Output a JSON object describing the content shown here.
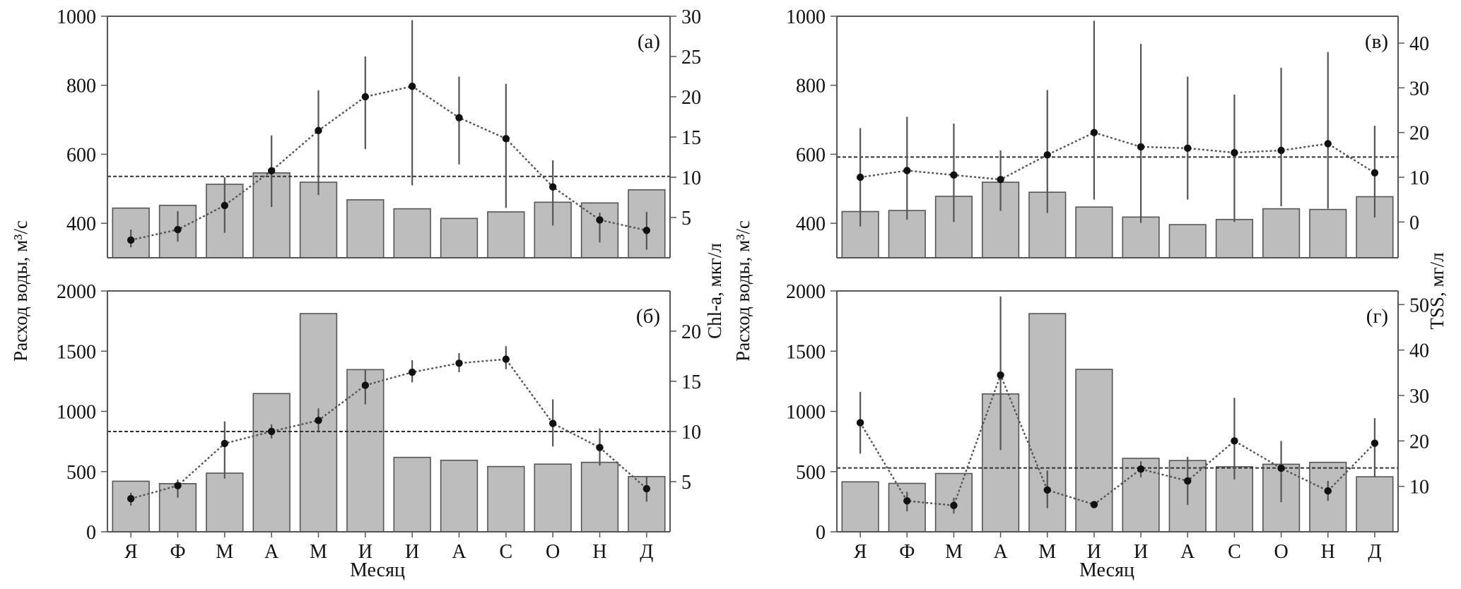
{
  "months": [
    "Я",
    "Ф",
    "М",
    "А",
    "М",
    "И",
    "И",
    "А",
    "С",
    "О",
    "Н",
    "Д"
  ],
  "xlabel": "Месяц",
  "ylabel_left": "Расход воды, м³/с",
  "ylabel_chl": "Chl-a, мкг/л",
  "ylabel_tss": "TSS, мг/л",
  "colors": {
    "bar": "#bdbdbd",
    "bar_stroke": "#555555",
    "line": "#555555",
    "point": "#111111"
  },
  "chart_data": [
    {
      "type": "bar",
      "panel_label": "(а)",
      "categories": [
        "Я",
        "Ф",
        "М",
        "А",
        "М",
        "И",
        "И",
        "А",
        "С",
        "О",
        "Н",
        "Д"
      ],
      "discharge": {
        "values": [
          444,
          452,
          513,
          546,
          519,
          468,
          442,
          414,
          433,
          461,
          459,
          497
        ],
        "ylim": [
          300,
          1000
        ],
        "yticks": [
          400,
          600,
          800,
          1000
        ]
      },
      "concentration": {
        "values": [
          2.2,
          3.5,
          6.5,
          10.8,
          15.8,
          20.0,
          21.3,
          17.4,
          14.8,
          8.8,
          4.7,
          3.4
        ],
        "err_low": [
          0.9,
          1.5,
          3.4,
          4.5,
          8.0,
          6.5,
          12.3,
          5.8,
          8.6,
          4.8,
          2.8,
          2.4
        ],
        "err_high": [
          1.3,
          2.3,
          3.5,
          4.4,
          5.0,
          5.0,
          8.2,
          5.1,
          6.8,
          3.3,
          0.9,
          2.3
        ],
        "ylim": [
          0,
          30
        ],
        "yticks": [
          5,
          10,
          15,
          20,
          25,
          30
        ]
      },
      "reference_line": 536
    },
    {
      "type": "bar",
      "panel_label": "(б)",
      "categories": [
        "Я",
        "Ф",
        "М",
        "А",
        "М",
        "И",
        "И",
        "А",
        "С",
        "О",
        "Н",
        "Д"
      ],
      "discharge": {
        "values": [
          420,
          400,
          487,
          1148,
          1812,
          1347,
          618,
          594,
          542,
          562,
          577,
          459
        ],
        "ylim": [
          0,
          2000
        ],
        "yticks": [
          0,
          500,
          1000,
          1500,
          2000
        ]
      },
      "concentration": {
        "values": [
          3.3,
          4.6,
          8.8,
          10.0,
          11.1,
          14.6,
          15.9,
          16.8,
          17.2,
          10.8,
          8.4,
          4.3
        ],
        "err_low": [
          0.7,
          1.2,
          3.5,
          0.7,
          1.1,
          1.9,
          1.0,
          0.9,
          1.0,
          2.3,
          1.8,
          1.3
        ],
        "err_high": [
          0.6,
          0.6,
          2.2,
          0.7,
          1.2,
          1.6,
          1.2,
          1.0,
          1.3,
          2.4,
          1.9,
          1.2
        ],
        "ylim": [
          0,
          24
        ],
        "yticks": [
          5,
          10,
          15,
          20
        ]
      },
      "reference_line": 833
    },
    {
      "type": "bar",
      "panel_label": "(в)",
      "categories": [
        "Я",
        "Ф",
        "М",
        "А",
        "М",
        "И",
        "И",
        "А",
        "С",
        "О",
        "Н",
        "Д"
      ],
      "discharge": {
        "values": [
          434,
          437,
          478,
          519,
          490,
          447,
          418,
          396,
          411,
          442,
          440,
          477
        ],
        "ylim": [
          300,
          1000
        ],
        "yticks": [
          400,
          600,
          800,
          1000
        ]
      },
      "concentration": {
        "values": [
          10.0,
          11.5,
          10.5,
          9.5,
          15.0,
          20.0,
          16.8,
          16.5,
          15.5,
          16.0,
          17.5,
          11.0
        ],
        "err_low": [
          11.0,
          11.0,
          10.5,
          7.0,
          13.0,
          15.0,
          17.0,
          11.5,
          15.5,
          12.5,
          14.5,
          10.0
        ],
        "err_high": [
          11.0,
          12.0,
          11.5,
          6.5,
          14.5,
          25.0,
          23.0,
          16.0,
          13.0,
          18.5,
          20.5,
          10.5
        ],
        "ylim": [
          -8,
          46
        ],
        "yticks": [
          0,
          10,
          20,
          30,
          40
        ]
      },
      "reference_line": 592
    },
    {
      "type": "bar",
      "panel_label": "(г)",
      "categories": [
        "Я",
        "Ф",
        "М",
        "А",
        "М",
        "И",
        "И",
        "А",
        "С",
        "О",
        "Н",
        "Д"
      ],
      "discharge": {
        "values": [
          415,
          402,
          484,
          1145,
          1812,
          1349,
          610,
          592,
          540,
          561,
          577,
          457
        ],
        "ylim": [
          0,
          2000
        ],
        "yticks": [
          0,
          500,
          1000,
          1500,
          2000
        ]
      },
      "concentration": {
        "values": [
          24.0,
          6.8,
          5.8,
          34.5,
          9.2,
          6.0,
          13.8,
          11.2,
          20.0,
          14.0,
          9.0,
          19.5
        ],
        "err_low": [
          6.8,
          2.3,
          1.8,
          16.5,
          4.0,
          0.0,
          1.8,
          5.3,
          8.5,
          7.5,
          2.2,
          7.5
        ],
        "err_high": [
          6.8,
          2.0,
          1.7,
          17.3,
          4.3,
          0.0,
          1.7,
          5.3,
          9.5,
          6.0,
          2.2,
          5.5
        ],
        "ylim": [
          0,
          53
        ],
        "yticks": [
          10,
          20,
          30,
          40,
          50
        ]
      },
      "reference_line": 530
    }
  ]
}
